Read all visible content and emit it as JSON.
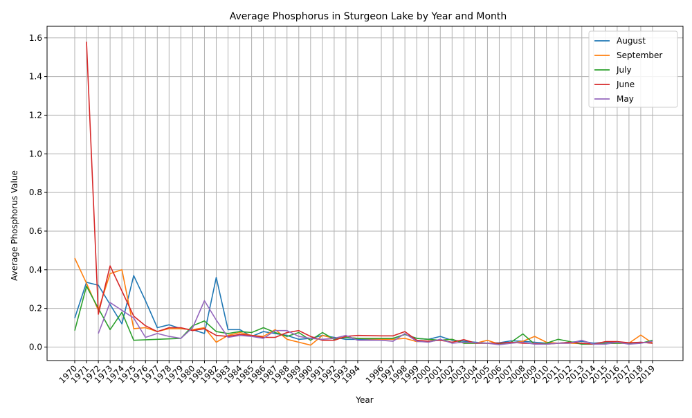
{
  "chart_data": {
    "type": "line",
    "title": "Average Phosphorus in Sturgeon Lake by Year and Month",
    "xlabel": "Year",
    "ylabel": "Average Phosphorus Value",
    "ylim": [
      -0.07,
      1.66
    ],
    "yticks": [
      0.0,
      0.2,
      0.4,
      0.6,
      0.8,
      1.0,
      1.2,
      1.4,
      1.6
    ],
    "grid": true,
    "legend_position": "top-right",
    "xticks": [
      1970,
      1971,
      1972,
      1973,
      1974,
      1975,
      1976,
      1977,
      1978,
      1979,
      1980,
      1981,
      1982,
      1983,
      1984,
      1985,
      1986,
      1987,
      1988,
      1989,
      1990,
      1991,
      1992,
      1993,
      1994,
      1996,
      1997,
      1998,
      1999,
      2000,
      2001,
      2002,
      2003,
      2004,
      2005,
      2006,
      2007,
      2008,
      2009,
      2010,
      2011,
      2012,
      2013,
      2014,
      2015,
      2016,
      2017,
      2018,
      2019
    ],
    "series": [
      {
        "name": "August",
        "color": "#1f77b4",
        "points": [
          [
            1970,
            0.15
          ],
          [
            1971,
            0.335
          ],
          [
            1972,
            0.32
          ],
          [
            1973,
            0.22
          ],
          [
            1974,
            0.12
          ],
          [
            1975,
            0.37
          ],
          [
            1976,
            0.24
          ],
          [
            1977,
            0.1
          ],
          [
            1978,
            0.115
          ],
          [
            1979,
            0.095
          ],
          [
            1980,
            0.09
          ],
          [
            1981,
            0.07
          ],
          [
            1982,
            0.36
          ],
          [
            1983,
            0.09
          ],
          [
            1984,
            0.09
          ],
          [
            1985,
            0.055
          ],
          [
            1986,
            0.08
          ],
          [
            1987,
            0.07
          ],
          [
            1988,
            0.06
          ],
          [
            1989,
            0.04
          ],
          [
            1990,
            0.045
          ],
          [
            1991,
            0.06
          ],
          [
            1992,
            0.05
          ],
          [
            1993,
            0.04
          ],
          [
            1994,
            0.04
          ],
          [
            1996,
            0.04
          ],
          [
            1997,
            0.045
          ],
          [
            1998,
            0.065
          ],
          [
            1999,
            0.045
          ],
          [
            2000,
            0.04
          ],
          [
            2001,
            0.055
          ],
          [
            2002,
            0.035
          ],
          [
            2003,
            0.03
          ],
          [
            2004,
            0.025
          ],
          [
            2005,
            0.02
          ],
          [
            2006,
            0.022
          ],
          [
            2007,
            0.032
          ],
          [
            2008,
            0.03
          ],
          [
            2009,
            0.025
          ],
          [
            2010,
            0.02
          ],
          [
            2011,
            0.02
          ],
          [
            2012,
            0.025
          ],
          [
            2013,
            0.03
          ],
          [
            2014,
            0.02
          ],
          [
            2015,
            0.025
          ],
          [
            2016,
            0.025
          ],
          [
            2017,
            0.02
          ],
          [
            2018,
            0.025
          ],
          [
            2019,
            0.02
          ]
        ]
      },
      {
        "name": "September",
        "color": "#ff7f0e",
        "points": [
          [
            1970,
            0.46
          ],
          [
            1971,
            0.33
          ],
          [
            1972,
            0.19
          ],
          [
            1973,
            0.38
          ],
          [
            1974,
            0.4
          ],
          [
            1975,
            0.095
          ],
          [
            1976,
            0.1
          ],
          [
            1977,
            0.08
          ],
          [
            1978,
            0.095
          ],
          [
            1979,
            0.095
          ],
          [
            1980,
            0.09
          ],
          [
            1981,
            0.1
          ],
          [
            1982,
            0.025
          ],
          [
            1983,
            0.06
          ],
          [
            1984,
            0.075
          ],
          [
            1985,
            0.06
          ],
          [
            1986,
            0.055
          ],
          [
            1987,
            0.09
          ],
          [
            1988,
            0.04
          ],
          [
            1989,
            0.025
          ],
          [
            1990,
            0.01
          ],
          [
            1991,
            0.06
          ],
          [
            1992,
            0.045
          ],
          [
            1993,
            0.05
          ],
          [
            1994,
            0.045
          ],
          [
            1996,
            0.04
          ],
          [
            1997,
            0.04
          ],
          [
            1998,
            0.045
          ],
          [
            1999,
            0.028
          ],
          [
            2000,
            0.03
          ],
          [
            2001,
            0.035
          ],
          [
            2002,
            0.04
          ],
          [
            2003,
            0.02
          ],
          [
            2004,
            0.02
          ],
          [
            2005,
            0.035
          ],
          [
            2006,
            0.015
          ],
          [
            2007,
            0.02
          ],
          [
            2008,
            0.03
          ],
          [
            2009,
            0.055
          ],
          [
            2010,
            0.025
          ],
          [
            2011,
            0.02
          ],
          [
            2012,
            0.02
          ],
          [
            2013,
            0.018
          ],
          [
            2014,
            0.015
          ],
          [
            2015,
            0.018
          ],
          [
            2016,
            0.02
          ],
          [
            2017,
            0.02
          ],
          [
            2018,
            0.062
          ],
          [
            2019,
            0.02
          ]
        ]
      },
      {
        "name": "July",
        "color": "#2ca02c",
        "points": [
          [
            1970,
            0.085
          ],
          [
            1971,
            0.315
          ],
          [
            1972,
            0.2
          ],
          [
            1973,
            0.09
          ],
          [
            1974,
            0.18
          ],
          [
            1975,
            0.035
          ],
          [
            1977,
            0.04
          ],
          [
            1979,
            0.045
          ],
          [
            1980,
            0.11
          ],
          [
            1981,
            0.135
          ],
          [
            1982,
            0.08
          ],
          [
            1983,
            0.07
          ],
          [
            1984,
            0.08
          ],
          [
            1985,
            0.075
          ],
          [
            1986,
            0.1
          ],
          [
            1987,
            0.075
          ],
          [
            1988,
            0.055
          ],
          [
            1989,
            0.075
          ],
          [
            1990,
            0.035
          ],
          [
            1991,
            0.075
          ],
          [
            1992,
            0.04
          ],
          [
            1993,
            0.05
          ],
          [
            1994,
            0.045
          ],
          [
            1996,
            0.045
          ],
          [
            1997,
            0.045
          ],
          [
            1998,
            0.065
          ],
          [
            1999,
            0.045
          ],
          [
            2000,
            0.04
          ],
          [
            2001,
            0.035
          ],
          [
            2002,
            0.04
          ],
          [
            2003,
            0.02
          ],
          [
            2004,
            0.02
          ],
          [
            2005,
            0.02
          ],
          [
            2006,
            0.015
          ],
          [
            2007,
            0.025
          ],
          [
            2008,
            0.068
          ],
          [
            2009,
            0.015
          ],
          [
            2010,
            0.02
          ],
          [
            2011,
            0.04
          ],
          [
            2012,
            0.028
          ],
          [
            2013,
            0.015
          ],
          [
            2014,
            0.015
          ],
          [
            2015,
            0.018
          ],
          [
            2016,
            0.02
          ],
          [
            2017,
            0.02
          ],
          [
            2018,
            0.02
          ],
          [
            2019,
            0.035
          ]
        ]
      },
      {
        "name": "June",
        "color": "#d62728",
        "points": [
          [
            1971,
            1.58
          ],
          [
            1972,
            0.17
          ],
          [
            1973,
            0.42
          ],
          [
            1974,
            0.29
          ],
          [
            1975,
            0.16
          ],
          [
            1976,
            0.11
          ],
          [
            1977,
            0.08
          ],
          [
            1978,
            0.1
          ],
          [
            1979,
            0.1
          ],
          [
            1980,
            0.085
          ],
          [
            1981,
            0.095
          ],
          [
            1982,
            0.06
          ],
          [
            1983,
            0.055
          ],
          [
            1984,
            0.065
          ],
          [
            1985,
            0.06
          ],
          [
            1986,
            0.05
          ],
          [
            1987,
            0.05
          ],
          [
            1988,
            0.075
          ],
          [
            1989,
            0.085
          ],
          [
            1990,
            0.055
          ],
          [
            1991,
            0.035
          ],
          [
            1992,
            0.035
          ],
          [
            1993,
            0.055
          ],
          [
            1994,
            0.06
          ],
          [
            1996,
            0.058
          ],
          [
            1997,
            0.058
          ],
          [
            1998,
            0.08
          ],
          [
            1999,
            0.035
          ],
          [
            2000,
            0.03
          ],
          [
            2001,
            0.035
          ],
          [
            2002,
            0.025
          ],
          [
            2003,
            0.038
          ],
          [
            2004,
            0.02
          ],
          [
            2005,
            0.02
          ],
          [
            2006,
            0.02
          ],
          [
            2007,
            0.025
          ],
          [
            2008,
            0.02
          ],
          [
            2009,
            0.018
          ],
          [
            2010,
            0.015
          ],
          [
            2011,
            0.02
          ],
          [
            2012,
            0.025
          ],
          [
            2013,
            0.02
          ],
          [
            2014,
            0.015
          ],
          [
            2015,
            0.028
          ],
          [
            2016,
            0.028
          ],
          [
            2017,
            0.022
          ],
          [
            2018,
            0.025
          ],
          [
            2019,
            0.02
          ]
        ]
      },
      {
        "name": "May",
        "color": "#9467bd",
        "points": [
          [
            1972,
            0.07
          ],
          [
            1973,
            0.23
          ],
          [
            1974,
            0.19
          ],
          [
            1975,
            0.15
          ],
          [
            1976,
            0.05
          ],
          [
            1977,
            0.07
          ],
          [
            1978,
            0.055
          ],
          [
            1979,
            0.045
          ],
          [
            1980,
            0.1
          ],
          [
            1981,
            0.24
          ],
          [
            1982,
            0.14
          ],
          [
            1983,
            0.05
          ],
          [
            1984,
            0.06
          ],
          [
            1985,
            0.055
          ],
          [
            1986,
            0.045
          ],
          [
            1987,
            0.085
          ],
          [
            1988,
            0.085
          ],
          [
            1989,
            0.055
          ],
          [
            1990,
            0.045
          ],
          [
            1991,
            0.04
          ],
          [
            1992,
            0.045
          ],
          [
            1993,
            0.06
          ],
          [
            1994,
            0.035
          ],
          [
            1996,
            0.035
          ],
          [
            1997,
            0.03
          ],
          [
            1998,
            0.07
          ],
          [
            1999,
            0.03
          ],
          [
            2000,
            0.025
          ],
          [
            2001,
            0.04
          ],
          [
            2002,
            0.02
          ],
          [
            2003,
            0.025
          ],
          [
            2004,
            0.022
          ],
          [
            2005,
            0.02
          ],
          [
            2006,
            0.012
          ],
          [
            2007,
            0.02
          ],
          [
            2008,
            0.025
          ],
          [
            2009,
            0.015
          ],
          [
            2010,
            0.015
          ],
          [
            2011,
            0.02
          ],
          [
            2012,
            0.02
          ],
          [
            2013,
            0.035
          ],
          [
            2014,
            0.015
          ],
          [
            2015,
            0.015
          ],
          [
            2016,
            0.025
          ],
          [
            2017,
            0.015
          ],
          [
            2018,
            0.02
          ],
          [
            2019,
            0.03
          ]
        ]
      }
    ]
  }
}
